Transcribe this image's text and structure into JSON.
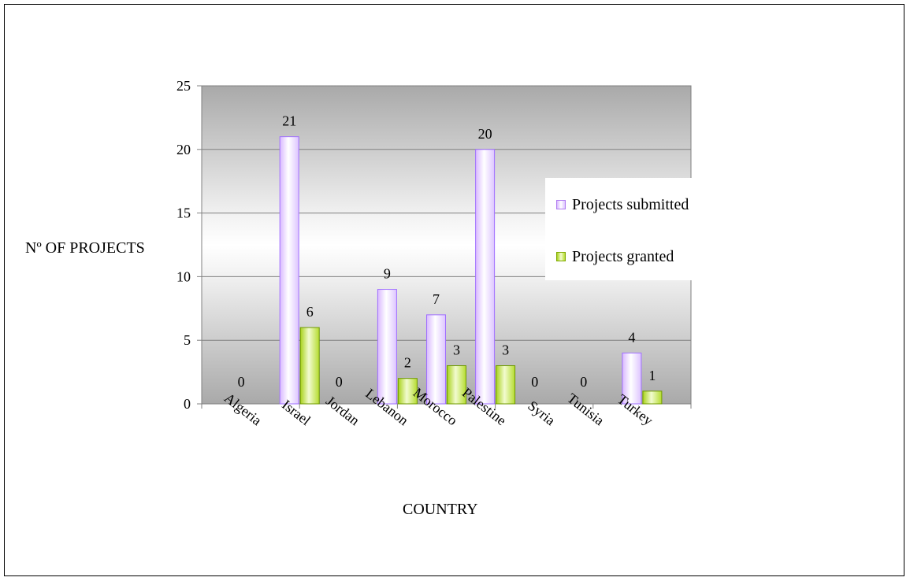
{
  "chart_data": {
    "type": "bar",
    "categories": [
      "Algeria",
      "Israel",
      "Jordan",
      "Lebanon",
      "Morocco",
      "Palestine",
      "Syria",
      "Tunisia",
      "Turkey"
    ],
    "series": [
      {
        "name": "Projects submitted",
        "values": [
          0,
          21,
          0,
          9,
          7,
          20,
          0,
          0,
          4
        ],
        "color": "#cc99ff"
      },
      {
        "name": "Projects granted",
        "values": [
          0,
          6,
          0,
          2,
          3,
          3,
          0,
          0,
          1
        ],
        "color": "#99cc00"
      }
    ],
    "data_labels": [
      "0",
      "21",
      "6",
      "0",
      "9",
      "2",
      "7",
      "3",
      "20",
      "3",
      "0",
      "0",
      "4",
      "1"
    ],
    "xlabel": "COUNTRY",
    "ylabel": "Nº OF PROJECTS",
    "ylim": [
      0,
      25
    ],
    "yticks": [
      "0",
      "5",
      "10",
      "15",
      "20",
      "25"
    ],
    "grid": true,
    "legend_position": "right"
  }
}
